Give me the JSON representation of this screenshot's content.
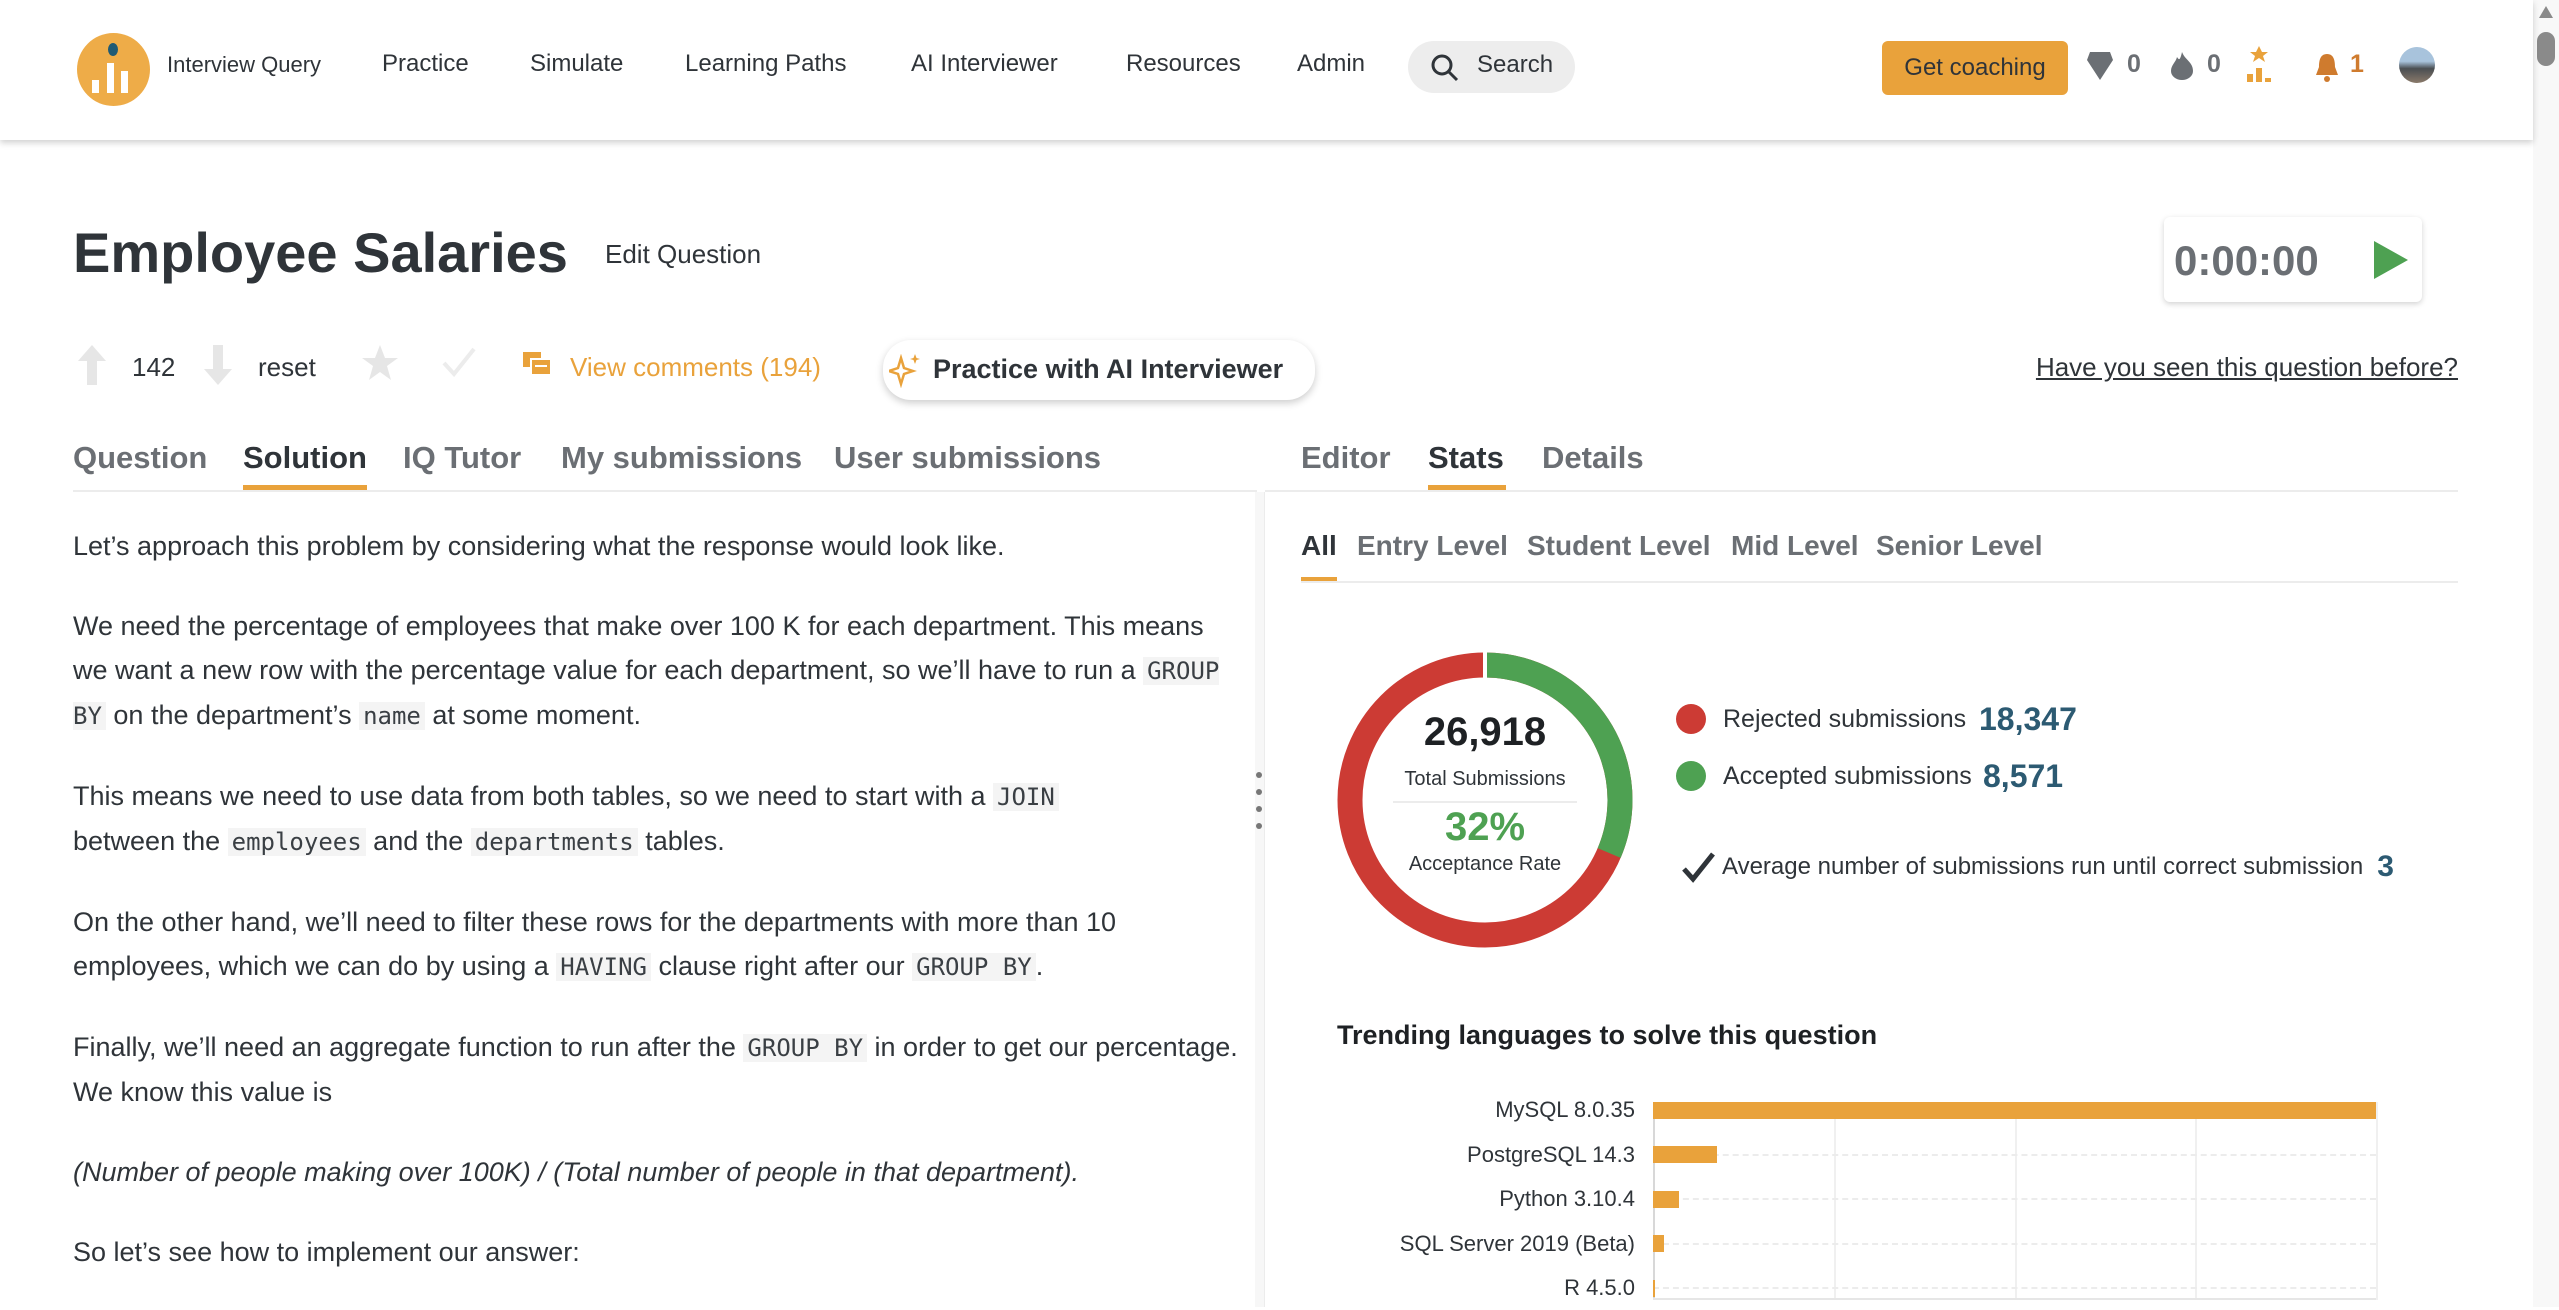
{
  "header": {
    "brand": "Interview Query",
    "nav": [
      "Practice",
      "Simulate",
      "Learning Paths",
      "AI Interviewer",
      "Resources",
      "Admin"
    ],
    "search_label": "Search",
    "coaching_label": "Get coaching",
    "gems": "0",
    "streak": "0",
    "notifications": "1",
    "accent": "#e9a23b"
  },
  "question": {
    "title": "Employee Salaries",
    "edit_label": "Edit Question",
    "timer": "0:00:00",
    "votes": "142",
    "reset_label": "reset",
    "comments_label": "View comments (194)",
    "ai_label": "Practice with AI Interviewer",
    "seen_label": "Have you seen this question before?"
  },
  "left_tabs": [
    "Question",
    "Solution",
    "IQ Tutor",
    "My submissions",
    "User submissions"
  ],
  "right_tabs": [
    "Editor",
    "Stats",
    "Details"
  ],
  "solution": {
    "p1": "Let’s approach this problem by considering what the response would look like.",
    "p2a": "We need the percentage of employees that make over 100 K for each department. This means we want a new row with the percentage value for each department, so we’ll have to run a ",
    "p2code1": "GROUP BY",
    "p2b": " on the department’s ",
    "p2code2": "name",
    "p2c": " at some moment.",
    "p3a": "This means we need to use data from both tables, so we need to start with a ",
    "p3code1": "JOIN",
    "p3b": " between the ",
    "p3code2": "employees",
    "p3c": " and the ",
    "p3code3": "departments",
    "p3d": " tables.",
    "p4a": "On the other hand, we’ll need to filter these rows for the departments with more than 10 employees, which we can do by using a ",
    "p4code1": "HAVING",
    "p4b": " clause right after our ",
    "p4code2": "GROUP BY",
    "p4c": ".",
    "p5a": "Finally, we’ll need an aggregate function to run after the ",
    "p5code1": "GROUP BY",
    "p5b": " in order to get our percentage. We know this value is",
    "p6": "(Number of people making over 100K) / (Total number of people in that department).",
    "p7": "So let’s see how to implement our answer:"
  },
  "stats": {
    "levels": [
      "All",
      "Entry Level",
      "Student Level",
      "Mid Level",
      "Senior Level"
    ],
    "total": "26,918",
    "total_label": "Total Submissions",
    "rate": "32%",
    "rate_label": "Acceptance Rate",
    "acceptance_fraction": 0.32,
    "rejected_label": "Rejected submissions",
    "rejected": "18,347",
    "accepted_label": "Accepted submissions",
    "accepted": "8,571",
    "avg_label": "Average number of submissions run until correct submission",
    "avg": "3",
    "colors": {
      "rejected": "#cc3b34",
      "accepted": "#4ea152",
      "bar": "#e9a23b"
    }
  },
  "chart_data": {
    "type": "bar",
    "title": "Trending languages to solve this question",
    "categories": [
      "MySQL 8.0.35",
      "PostgreSQL 14.3",
      "Python 3.10.4",
      "SQL Server 2019 (Beta)",
      "R 4.5.0"
    ],
    "values": [
      100,
      8.8,
      3.6,
      1.5,
      0.3
    ],
    "xlabel": "",
    "ylabel": "",
    "xlim": [
      0,
      100
    ],
    "grid": true
  }
}
